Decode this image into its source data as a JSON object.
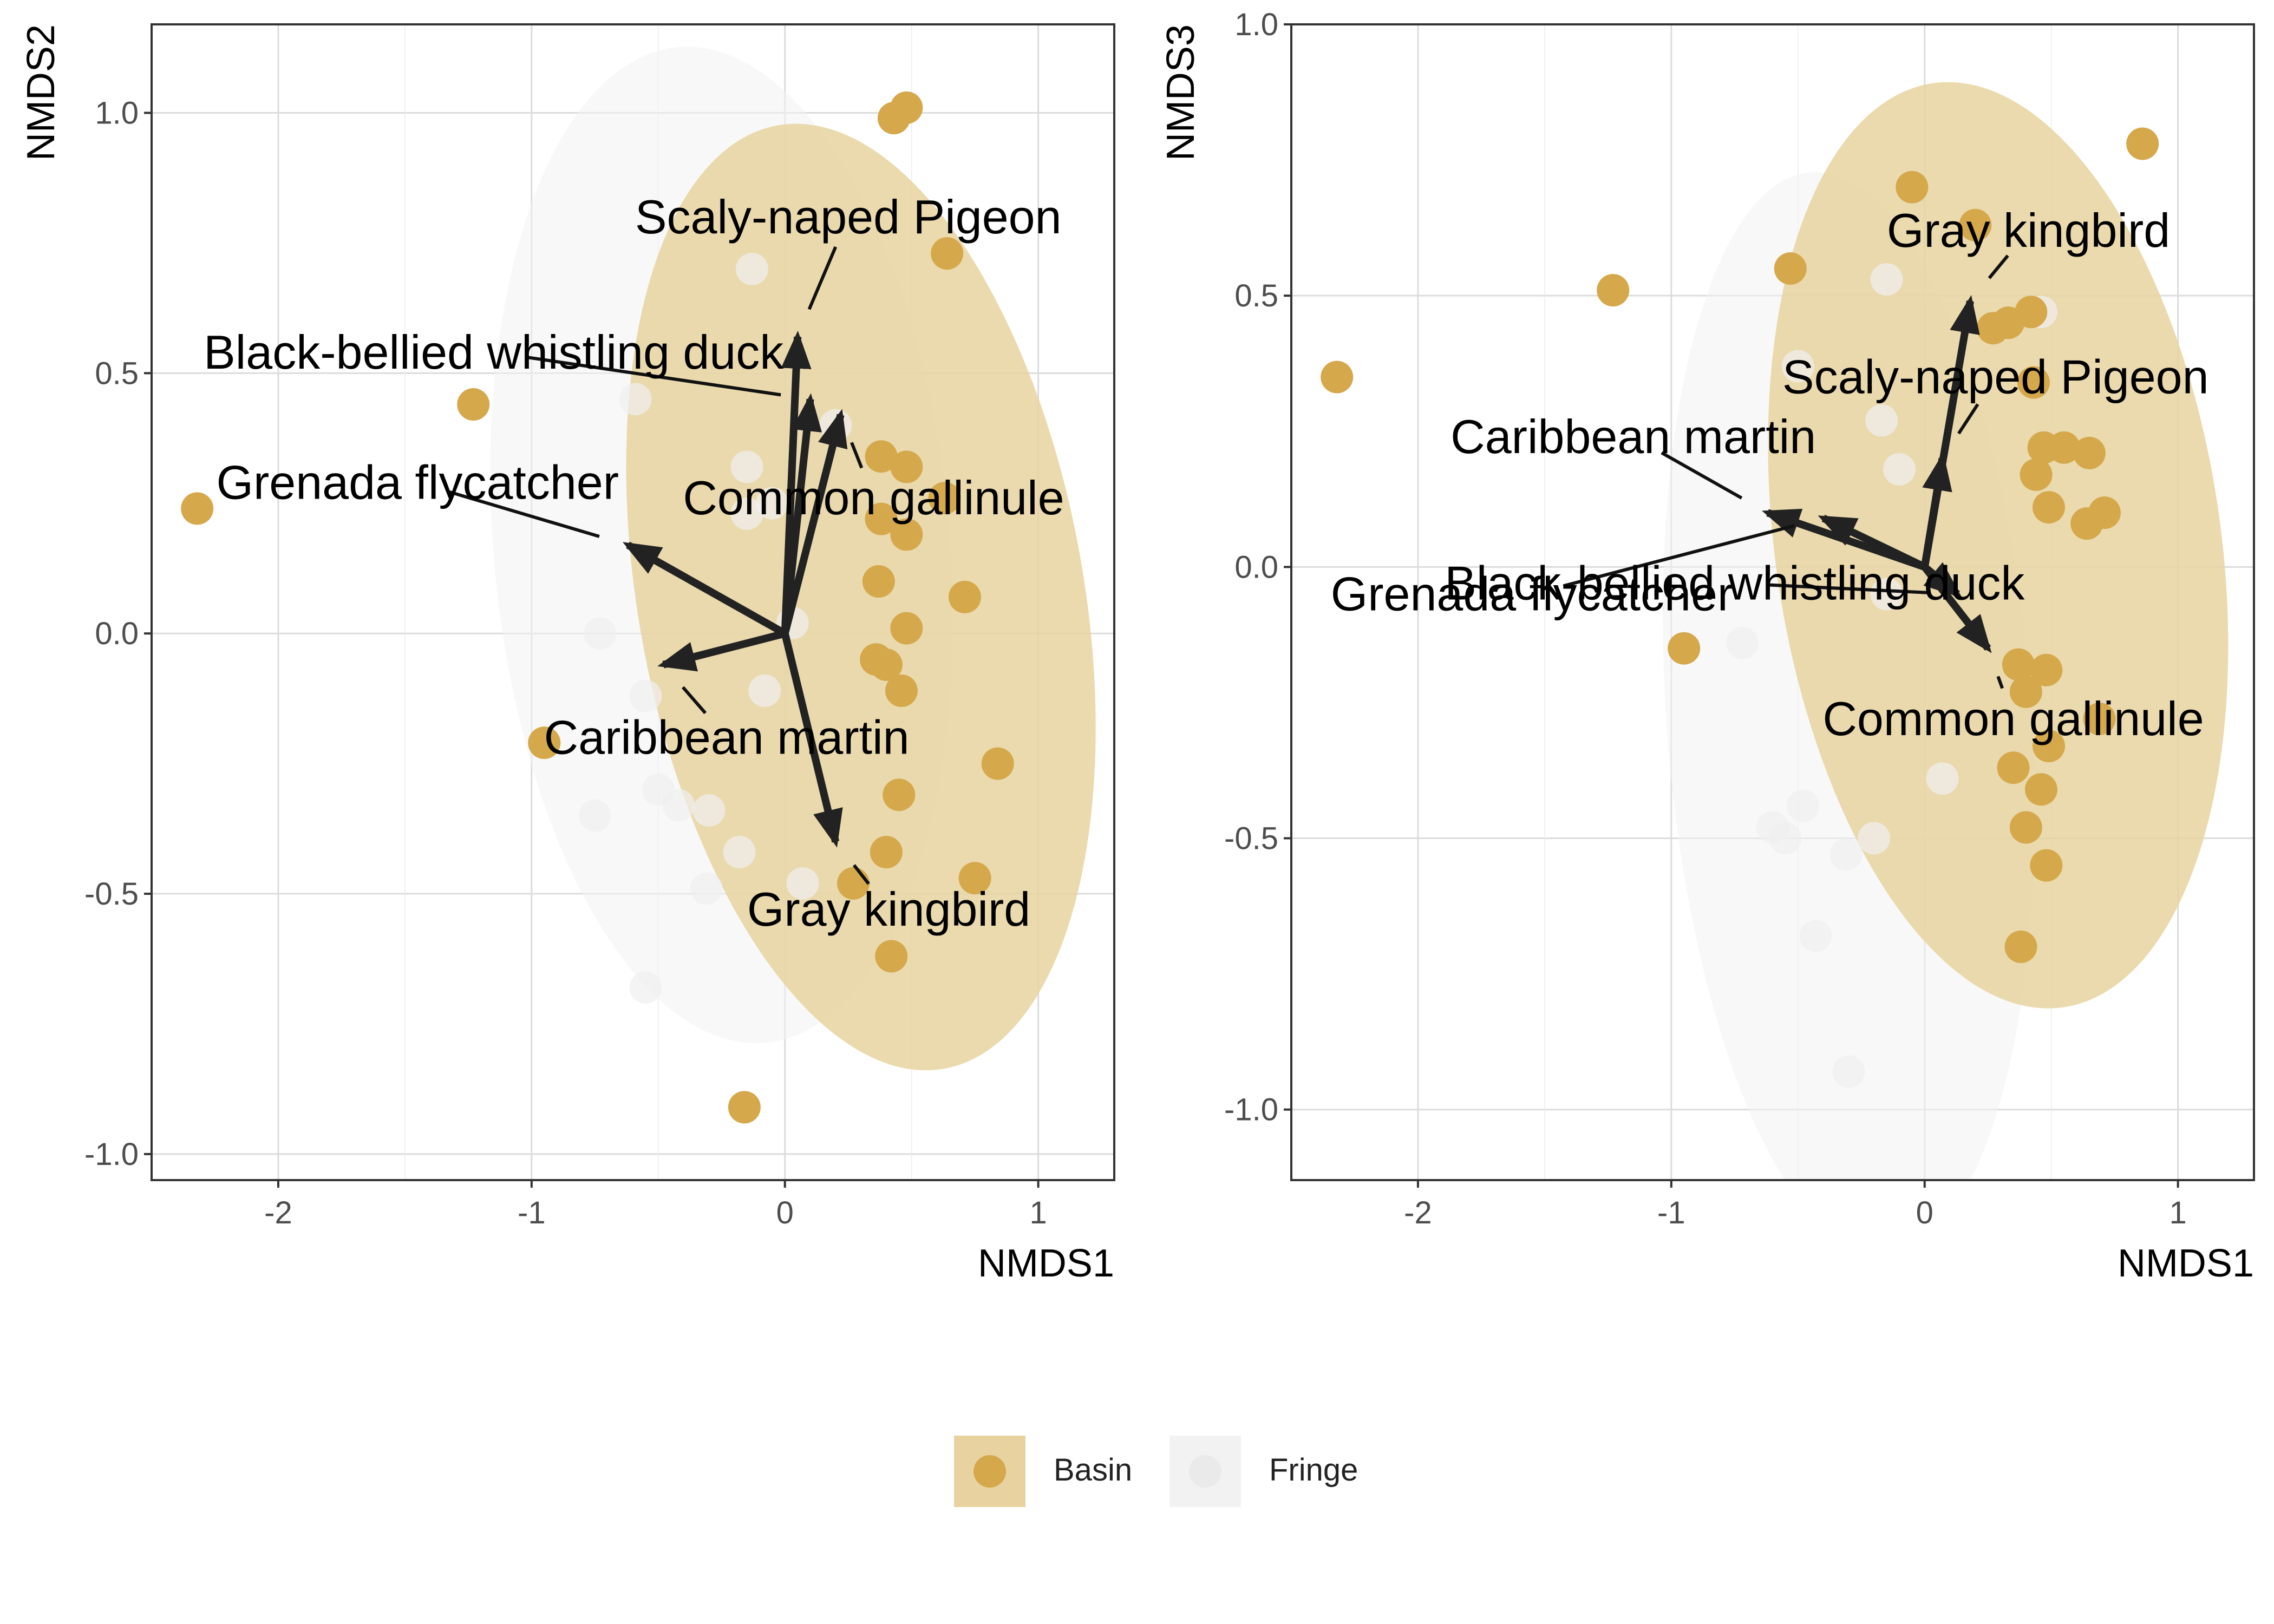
{
  "legend": {
    "items": [
      {
        "label": "Basin",
        "color": "#d4a84b",
        "ellipse_color": "#e8d3a0"
      },
      {
        "label": "Fringe",
        "color": "#efefef",
        "ellipse_color": "#f2f2f2"
      }
    ]
  },
  "chart_data": [
    {
      "type": "scatter",
      "xlabel": "NMDS1",
      "ylabel": "NMDS2",
      "xlim": [
        -2.5,
        1.3
      ],
      "ylim": [
        -1.05,
        1.17
      ],
      "xticks": [
        -2,
        -1,
        0,
        1
      ],
      "yticks": [
        -1.0,
        -0.5,
        0.0,
        0.5,
        1.0
      ],
      "xtick_labels": [
        "-2",
        "-1",
        "0",
        "1"
      ],
      "ytick_labels": [
        "-1.0",
        "-0.5",
        "0.0",
        "0.5",
        "1.0"
      ],
      "grid": true,
      "ellipses": [
        {
          "group": "Fringe",
          "cx": -0.25,
          "cy": 0.17,
          "rx": 0.9,
          "ry": 0.96,
          "angle": -5
        },
        {
          "group": "Basin",
          "cx": 0.3,
          "cy": 0.07,
          "rx": 0.88,
          "ry": 0.92,
          "angle": -10
        }
      ],
      "series": [
        {
          "name": "Basin",
          "points": [
            [
              0.43,
              0.99
            ],
            [
              0.48,
              1.01
            ],
            [
              0.64,
              0.73
            ],
            [
              -1.23,
              0.44
            ],
            [
              -2.32,
              0.24
            ],
            [
              0.38,
              0.34
            ],
            [
              0.48,
              0.32
            ],
            [
              0.63,
              0.26
            ],
            [
              0.38,
              0.22
            ],
            [
              0.48,
              0.19
            ],
            [
              0.37,
              0.1
            ],
            [
              0.71,
              0.07
            ],
            [
              0.48,
              0.01
            ],
            [
              0.36,
              -0.05
            ],
            [
              0.4,
              -0.06
            ],
            [
              0.46,
              -0.11
            ],
            [
              -0.95,
              -0.21
            ],
            [
              0.84,
              -0.25
            ],
            [
              0.45,
              -0.31
            ],
            [
              0.4,
              -0.42
            ],
            [
              0.27,
              -0.48
            ],
            [
              0.75,
              -0.47
            ],
            [
              0.42,
              -0.62
            ],
            [
              -0.16,
              -0.91
            ]
          ]
        },
        {
          "name": "Fringe",
          "points": [
            [
              -0.13,
              0.7
            ],
            [
              -0.59,
              0.45
            ],
            [
              -0.15,
              0.32
            ],
            [
              -0.15,
              0.23
            ],
            [
              -0.05,
              0.25
            ],
            [
              0.2,
              0.4
            ],
            [
              -0.73,
              0.0
            ],
            [
              0.03,
              0.02
            ],
            [
              -0.55,
              -0.12
            ],
            [
              -0.08,
              -0.11
            ],
            [
              -0.5,
              -0.3
            ],
            [
              -0.42,
              -0.33
            ],
            [
              -0.3,
              -0.34
            ],
            [
              -0.18,
              -0.42
            ],
            [
              -0.31,
              -0.49
            ],
            [
              0.07,
              -0.48
            ],
            [
              -0.55,
              -0.68
            ],
            [
              -0.75,
              -0.35
            ]
          ]
        }
      ],
      "vectors": [
        {
          "label": "Scaly-naped Pigeon",
          "x": 0.05,
          "y": 0.57,
          "label_x": 0.25,
          "label_y": 0.8
        },
        {
          "label": "Black-bellied whistling duck",
          "x": 0.1,
          "y": 0.45,
          "label_x": -1.15,
          "label_y": 0.54
        },
        {
          "label": "Common gallinule",
          "x": 0.22,
          "y": 0.42,
          "label_x": 0.35,
          "label_y": 0.26
        },
        {
          "label": "Grenada flycatcher",
          "x": -0.62,
          "y": 0.17,
          "label_x": -1.45,
          "label_y": 0.29
        },
        {
          "label": "Caribbean martin",
          "x": -0.48,
          "y": -0.06,
          "label_x": -0.23,
          "label_y": -0.2
        },
        {
          "label": "Gray kingbird",
          "x": 0.2,
          "y": -0.4,
          "label_x": 0.41,
          "label_y": -0.53
        }
      ]
    },
    {
      "type": "scatter",
      "xlabel": "NMDS1",
      "ylabel": "NMDS3",
      "xlim": [
        -2.5,
        1.3
      ],
      "ylim": [
        -1.13,
        1.0
      ],
      "xticks": [
        -2,
        -1,
        0,
        1
      ],
      "yticks": [
        -1.0,
        -0.5,
        0.0,
        0.5,
        1.0
      ],
      "xtick_labels": [
        "-2",
        "-1",
        "0",
        "1"
      ],
      "ytick_labels": [
        "-1.0",
        "-0.5",
        "0.0",
        "0.5",
        "1.0"
      ],
      "grid": true,
      "ellipses": [
        {
          "group": "Fringe",
          "cx": -0.3,
          "cy": -0.27,
          "rx": 0.72,
          "ry": 1.0,
          "angle": -4
        },
        {
          "group": "Basin",
          "cx": 0.29,
          "cy": 0.04,
          "rx": 0.88,
          "ry": 0.86,
          "angle": -8
        }
      ],
      "series": [
        {
          "name": "Basin",
          "points": [
            [
              0.86,
              0.78
            ],
            [
              -0.05,
              0.7
            ],
            [
              -1.23,
              0.51
            ],
            [
              -2.32,
              0.35
            ],
            [
              0.2,
              0.63
            ],
            [
              -0.53,
              0.55
            ],
            [
              0.42,
              0.47
            ],
            [
              0.33,
              0.45
            ],
            [
              0.27,
              0.44
            ],
            [
              0.43,
              0.34
            ],
            [
              0.47,
              0.22
            ],
            [
              0.55,
              0.22
            ],
            [
              0.65,
              0.21
            ],
            [
              0.44,
              0.17
            ],
            [
              0.49,
              0.11
            ],
            [
              0.71,
              0.1
            ],
            [
              0.64,
              0.08
            ],
            [
              -0.95,
              -0.15
            ],
            [
              0.37,
              -0.18
            ],
            [
              0.48,
              -0.19
            ],
            [
              0.4,
              -0.23
            ],
            [
              0.69,
              -0.28
            ],
            [
              0.49,
              -0.33
            ],
            [
              0.35,
              -0.37
            ],
            [
              0.46,
              -0.41
            ],
            [
              0.4,
              -0.48
            ],
            [
              0.48,
              -0.55
            ],
            [
              0.38,
              -0.7
            ]
          ]
        },
        {
          "name": "Fringe",
          "points": [
            [
              -0.15,
              0.53
            ],
            [
              0.46,
              0.47
            ],
            [
              -0.5,
              0.37
            ],
            [
              -0.17,
              0.27
            ],
            [
              -0.1,
              0.18
            ],
            [
              -0.15,
              -0.05
            ],
            [
              -0.72,
              -0.14
            ],
            [
              0.07,
              -0.39
            ],
            [
              -0.48,
              -0.44
            ],
            [
              -0.6,
              -0.48
            ],
            [
              -0.2,
              -0.5
            ],
            [
              -0.31,
              -0.53
            ],
            [
              -0.55,
              -0.5
            ],
            [
              -0.43,
              -0.68
            ],
            [
              -0.3,
              -0.93
            ]
          ]
        }
      ],
      "vectors": [
        {
          "label": "Gray kingbird",
          "x": 0.18,
          "y": 0.49,
          "label_x": 0.41,
          "label_y": 0.62
        },
        {
          "label": "Scaly-naped Pigeon",
          "x": 0.07,
          "y": 0.2,
          "label_x": 0.28,
          "label_y": 0.35
        },
        {
          "label": "Caribbean martin",
          "x": -0.62,
          "y": 0.1,
          "label_x": -1.15,
          "label_y": 0.24
        },
        {
          "label": "Grenada flycatcher",
          "x": -0.4,
          "y": 0.09,
          "label_x": -1.55,
          "label_y": -0.05
        },
        {
          "label": "Black-bellied whistling duck",
          "x": 0.13,
          "y": -0.05,
          "label_x": -0.75,
          "label_y": -0.03
        },
        {
          "label": "Common gallinule",
          "x": 0.25,
          "y": -0.15,
          "label_x": 0.35,
          "label_y": -0.28
        }
      ]
    }
  ]
}
